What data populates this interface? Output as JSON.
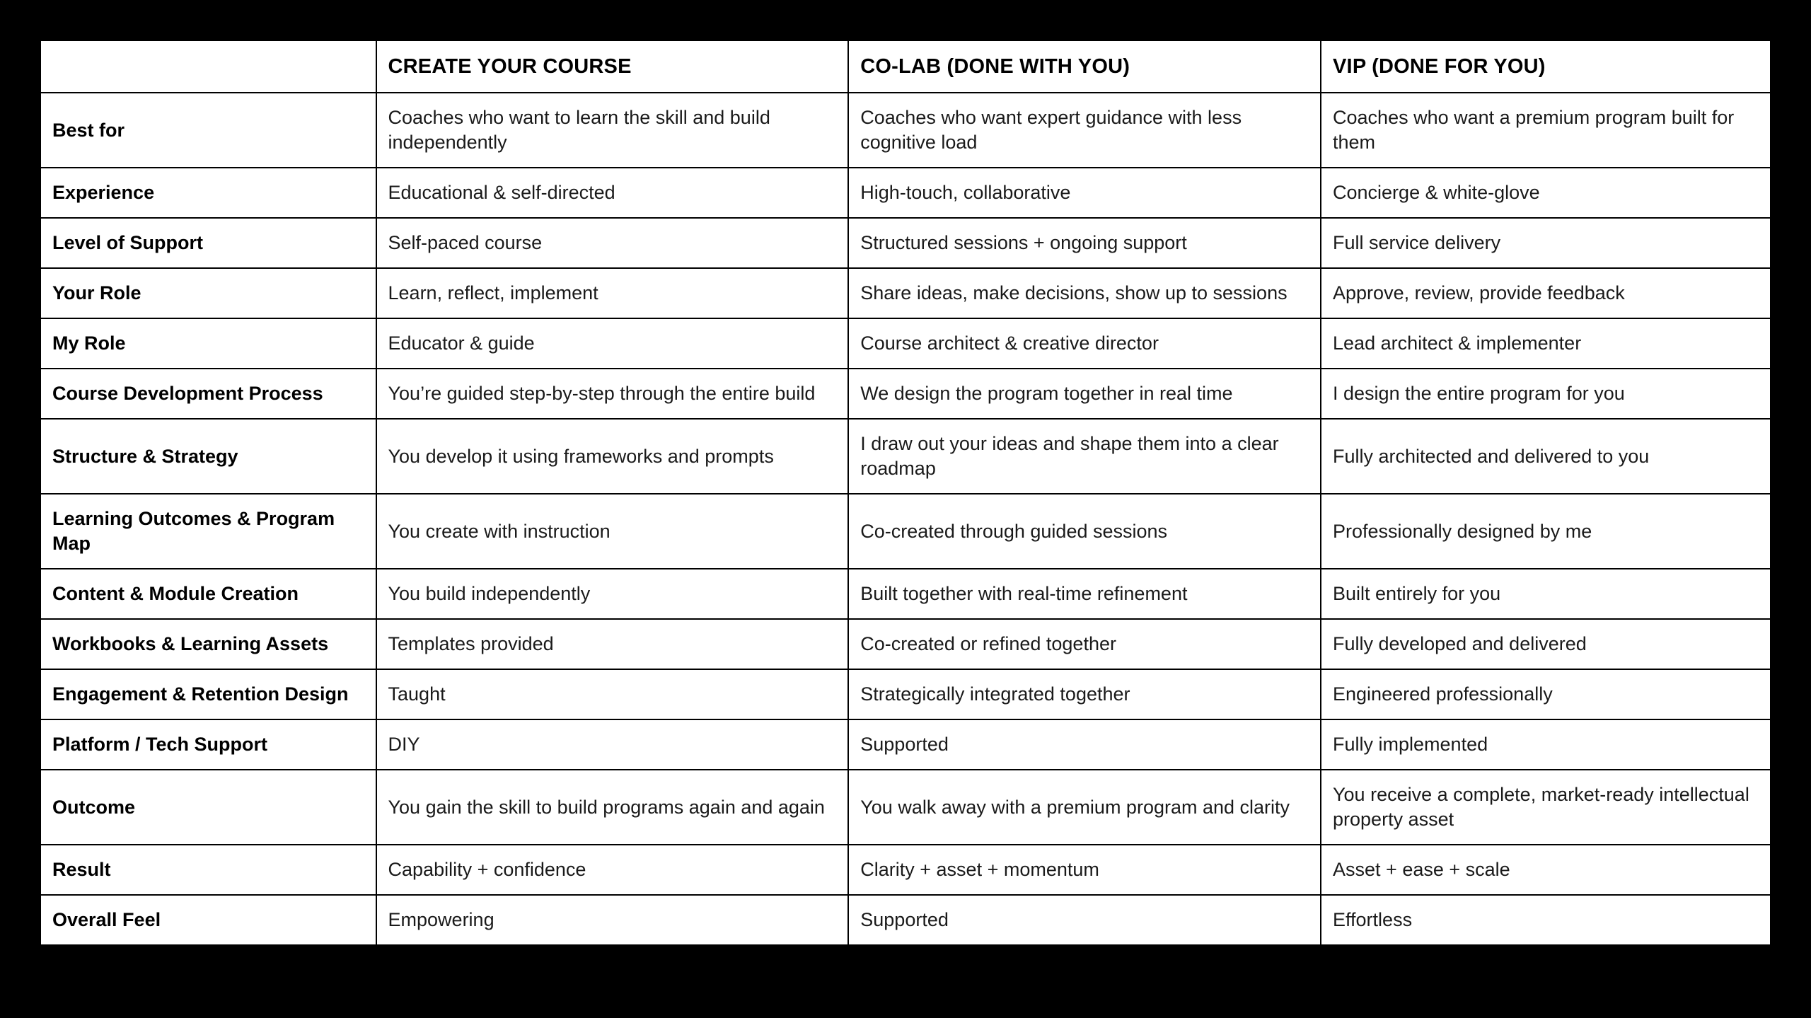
{
  "colors": {
    "page_background": "#000000",
    "table_background": "#ffffff",
    "border": "#000000",
    "text": "#111111"
  },
  "table": {
    "columns": [
      "",
      "CREATE YOUR COURSE",
      "CO-LAB (DONE WITH YOU)",
      "VIP (DONE FOR YOU)"
    ],
    "rows": [
      {
        "label": "Best for",
        "cells": [
          "Coaches who want to learn the skill and build independently",
          "Coaches who want expert guidance with less cognitive load",
          "Coaches who want a premium program built for them"
        ]
      },
      {
        "label": "Experience",
        "cells": [
          "Educational & self-directed",
          "High-touch, collaborative",
          "Concierge & white-glove"
        ]
      },
      {
        "label": "Level of Support",
        "cells": [
          "Self-paced course",
          "Structured sessions + ongoing support",
          "Full service delivery"
        ]
      },
      {
        "label": "Your Role",
        "cells": [
          "Learn, reflect, implement",
          "Share ideas, make decisions, show up to sessions",
          "Approve, review, provide feedback"
        ]
      },
      {
        "label": "My Role",
        "cells": [
          "Educator & guide",
          "Course architect & creative director",
          "Lead architect & implementer"
        ]
      },
      {
        "label": "Course Development Process",
        "cells": [
          "You’re guided step-by-step through the entire build",
          "We design the program together in real time",
          "I design the entire program for you"
        ]
      },
      {
        "label": "Structure & Strategy",
        "cells": [
          "You develop it using frameworks and prompts",
          "I draw out your ideas and shape them into a clear roadmap",
          "Fully architected and delivered to you"
        ]
      },
      {
        "label": "Learning Outcomes & Program Map",
        "cells": [
          "You create with instruction",
          "Co-created through guided sessions",
          "Professionally designed by me"
        ]
      },
      {
        "label": "Content & Module Creation",
        "cells": [
          "You build independently",
          "Built together with real-time refinement",
          "Built entirely for you"
        ]
      },
      {
        "label": "Workbooks & Learning Assets",
        "cells": [
          "Templates provided",
          "Co-created or refined together",
          "Fully developed and delivered"
        ]
      },
      {
        "label": "Engagement & Retention Design",
        "cells": [
          "Taught",
          "Strategically integrated together",
          "Engineered professionally"
        ]
      },
      {
        "label": "Platform / Tech Support",
        "cells": [
          "DIY",
          "Supported",
          "Fully implemented"
        ]
      },
      {
        "label": "Outcome",
        "cells": [
          "You gain the skill to build programs again and again",
          "You walk away with a premium program and clarity",
          "You receive a complete, market-ready intellectual property asset"
        ]
      },
      {
        "label": "Result",
        "cells": [
          "Capability + confidence",
          "Clarity + asset + momentum",
          "Asset + ease + scale"
        ]
      },
      {
        "label": "Overall Feel",
        "cells": [
          "Empowering",
          "Supported",
          "Effortless"
        ]
      }
    ]
  }
}
